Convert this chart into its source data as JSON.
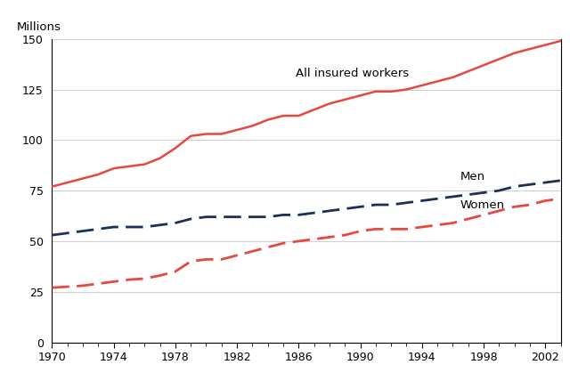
{
  "years": [
    1970,
    1971,
    1972,
    1973,
    1974,
    1975,
    1976,
    1977,
    1978,
    1979,
    1980,
    1981,
    1982,
    1983,
    1984,
    1985,
    1986,
    1987,
    1988,
    1989,
    1990,
    1991,
    1992,
    1993,
    1994,
    1995,
    1996,
    1997,
    1998,
    1999,
    2000,
    2001,
    2002,
    2003
  ],
  "all_insured": [
    77,
    79,
    81,
    83,
    86,
    87,
    88,
    91,
    96,
    102,
    103,
    103,
    105,
    107,
    110,
    112,
    112,
    115,
    118,
    120,
    122,
    124,
    124,
    125,
    127,
    129,
    131,
    134,
    137,
    140,
    143,
    145,
    147,
    149
  ],
  "men": [
    53,
    54,
    55,
    56,
    57,
    57,
    57,
    58,
    59,
    61,
    62,
    62,
    62,
    62,
    62,
    63,
    63,
    64,
    65,
    66,
    67,
    68,
    68,
    69,
    70,
    71,
    72,
    73,
    74,
    75,
    77,
    78,
    79,
    80
  ],
  "women": [
    27,
    27.5,
    28,
    29,
    30,
    31,
    31.5,
    33,
    35,
    40,
    41,
    41,
    43,
    45,
    47,
    49,
    50,
    51,
    52,
    53,
    55,
    56,
    56,
    56,
    57,
    58,
    59,
    61,
    63,
    65,
    67,
    68,
    70,
    71
  ],
  "all_insured_color": "#e8473f",
  "men_color": "#1a2f5a",
  "women_color": "#e8473f",
  "ylabel": "Millions",
  "ylim": [
    0,
    150
  ],
  "yticks": [
    0,
    25,
    50,
    75,
    100,
    125,
    150
  ],
  "xlim": [
    1970,
    2003
  ],
  "xticks": [
    1970,
    1974,
    1978,
    1982,
    1986,
    1990,
    1994,
    1998,
    2002
  ],
  "label_all": "All insured workers",
  "label_men": "Men",
  "label_women": "Women",
  "background_color": "#ffffff",
  "grid_color": "#d0d0d0"
}
